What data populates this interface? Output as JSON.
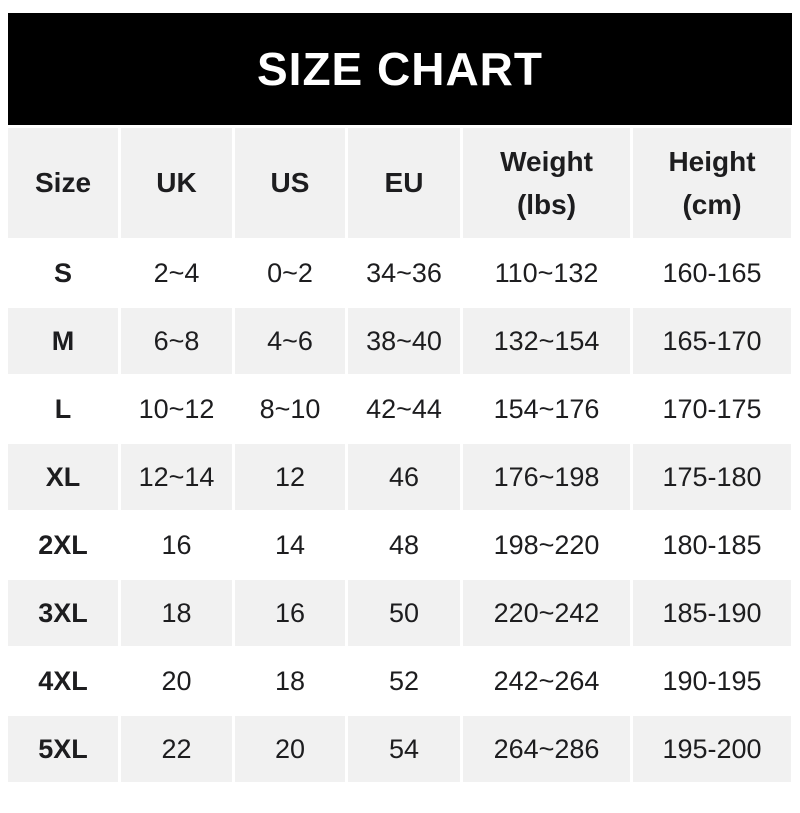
{
  "banner": {
    "title": "SIZE CHART"
  },
  "colors": {
    "banner_bg": "#000000",
    "banner_text": "#ffffff",
    "header_bg": "#f1f1f1",
    "row_alt_bg": "#f1f1f1",
    "row_bg": "#ffffff",
    "text": "#1d1d1f"
  },
  "table": {
    "keys": [
      "size",
      "uk",
      "us",
      "eu",
      "weight-lbs",
      "height-cm"
    ],
    "header_lines": [
      [
        "Size"
      ],
      [
        "UK"
      ],
      [
        "US"
      ],
      [
        "EU"
      ],
      [
        "Weight",
        "(lbs)"
      ],
      [
        "Height",
        "(cm)"
      ]
    ]
  },
  "chart_data": {
    "type": "table",
    "title": "SIZE CHART",
    "columns": [
      "Size",
      "UK",
      "US",
      "EU",
      "Weight (lbs)",
      "Height (cm)"
    ],
    "rows": [
      [
        "S",
        "2~4",
        "0~2",
        "34~36",
        "110~132",
        "160-165"
      ],
      [
        "M",
        "6~8",
        "4~6",
        "38~40",
        "132~154",
        "165-170"
      ],
      [
        "L",
        "10~12",
        "8~10",
        "42~44",
        "154~176",
        "170-175"
      ],
      [
        "XL",
        "12~14",
        "12",
        "46",
        "176~198",
        "175-180"
      ],
      [
        "2XL",
        "16",
        "14",
        "48",
        "198~220",
        "180-185"
      ],
      [
        "3XL",
        "18",
        "16",
        "50",
        "220~242",
        "185-190"
      ],
      [
        "4XL",
        "20",
        "18",
        "52",
        "242~264",
        "190-195"
      ],
      [
        "5XL",
        "22",
        "20",
        "54",
        "264~286",
        "195-200"
      ]
    ],
    "layout": {
      "header_position": "top",
      "row_striping": "alternate starting white",
      "grid": "thin white gutters between cells"
    }
  }
}
